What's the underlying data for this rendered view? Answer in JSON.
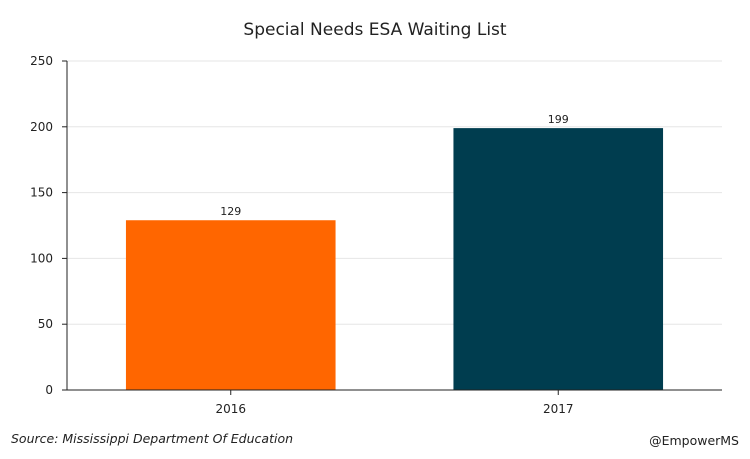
{
  "chart_data": {
    "type": "bar",
    "title": "Special Needs ESA Waiting List",
    "categories": [
      "2016",
      "2017"
    ],
    "values": [
      129,
      199
    ],
    "data_labels": [
      "129",
      "199"
    ],
    "bar_colors": [
      "#ff6600",
      "#003d4f"
    ],
    "xlabel": "",
    "ylabel": "",
    "ylim": [
      0,
      250
    ],
    "yticks": [
      0,
      50,
      100,
      150,
      200,
      250
    ],
    "grid": true
  },
  "footer": {
    "source": "Source: Mississippi Department Of Education",
    "handle": "@EmpowerMS"
  }
}
